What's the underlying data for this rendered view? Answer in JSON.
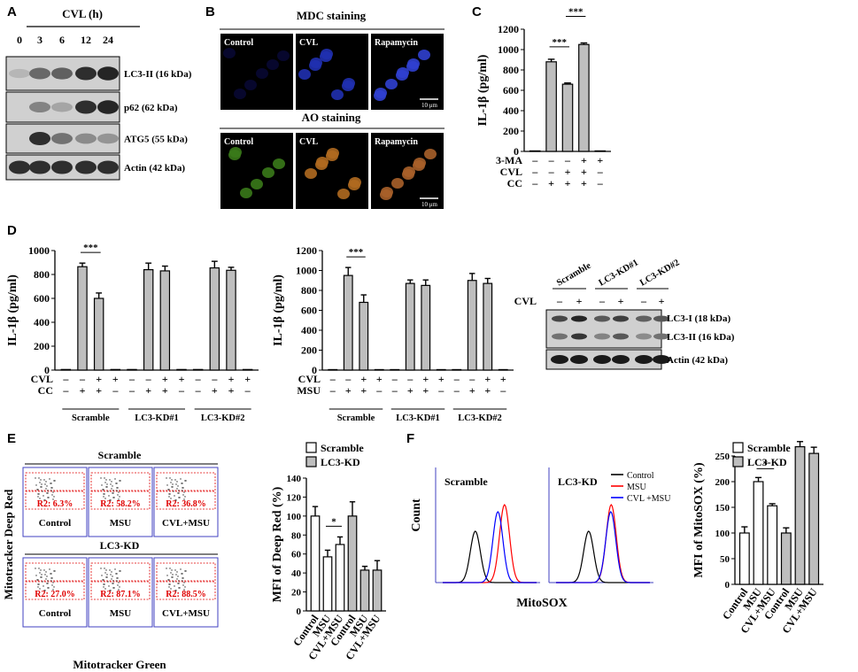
{
  "panels": {
    "A": {
      "label": "A",
      "header": "CVL (h)",
      "times": [
        "0",
        "3",
        "6",
        "12",
        "24"
      ],
      "blots": [
        "LC3-II (16 kDa)",
        "p62 (62 kDa)",
        "ATG5 (55 kDa)",
        "Actin (42 kDa)"
      ]
    },
    "B": {
      "label": "B",
      "mdc_title": "MDC staining",
      "ao_title": "AO staining",
      "conditions": [
        "Control",
        "CVL",
        "Rapamycin"
      ],
      "scale": "10 μm"
    },
    "C": {
      "label": "C"
    },
    "D": {
      "label": "D",
      "blot_groups": [
        "Scramble",
        "LC3-KD#1",
        "LC3-KD#2"
      ],
      "blot_cvl_label": "CVL",
      "blot_cvl_signs": [
        "–",
        "+",
        "–",
        "+",
        "–",
        "+"
      ],
      "blot_bands": [
        "LC3-I (18 kDa)",
        "LC3-II (16 kDa)",
        "Actin (42 kDa)"
      ]
    },
    "E": {
      "label": "E",
      "flow_y": "Mitotracker Deep Red",
      "flow_x": "Mitotracker Green",
      "rows": [
        {
          "name": "Scramble",
          "cells": [
            {
              "cond": "Control",
              "r2": "R2: 6.3%"
            },
            {
              "cond": "MSU",
              "r2": "R2: 58.2%"
            },
            {
              "cond": "CVL+MSU",
              "r2": "R2: 36.8%"
            }
          ]
        },
        {
          "name": "LC3-KD",
          "cells": [
            {
              "cond": "Control",
              "r2": "R2: 27.0%"
            },
            {
              "cond": "MSU",
              "r2": "R2: 87.1%"
            },
            {
              "cond": "CVL+MSU",
              "r2": "R2: 88.5%"
            }
          ]
        }
      ]
    },
    "F": {
      "label": "F",
      "hist_ylabel": "Count",
      "hist_xlabel": "MitoSOX",
      "hist_titles": [
        "Scramble",
        "LC3-KD"
      ],
      "hist_legend": [
        "Control",
        "MSU",
        "CVL +MSU"
      ]
    }
  },
  "colors": {
    "control": "#000000",
    "msu": "#ff0000",
    "cvl_msu": "#0000ff",
    "bar_gray": "#bebebe",
    "bar_white": "#ffffff",
    "gate_red": "#e00000",
    "flow_blue": "#4040c0"
  },
  "chart_data": [
    {
      "id": "C",
      "type": "bar",
      "ylabel": "IL-1β (pg/ml)",
      "ylim": [
        0,
        1200
      ],
      "yticks": [
        0,
        200,
        400,
        600,
        800,
        1000,
        1200
      ],
      "values": [
        5,
        880,
        660,
        1050,
        5
      ],
      "errors": [
        0,
        25,
        12,
        15,
        0
      ],
      "rows": [
        {
          "label": "3-MA",
          "signs": [
            "–",
            "–",
            "–",
            "+",
            "+"
          ]
        },
        {
          "label": "CVL",
          "signs": [
            "–",
            "–",
            "+",
            "+",
            "–"
          ]
        },
        {
          "label": "CC",
          "signs": [
            "–",
            "+",
            "+",
            "+",
            "–"
          ]
        }
      ],
      "sig": [
        {
          "from": 1,
          "to": 2,
          "text": "***"
        },
        {
          "from": 2,
          "to": 3,
          "text": "***"
        }
      ]
    },
    {
      "id": "D1",
      "type": "bar",
      "ylabel": "IL-1β (pg/ml)",
      "ylim": [
        0,
        1000
      ],
      "yticks": [
        0,
        200,
        400,
        600,
        800,
        1000
      ],
      "values": [
        5,
        865,
        600,
        5,
        5,
        840,
        830,
        5,
        5,
        855,
        835,
        5
      ],
      "errors": [
        0,
        30,
        45,
        0,
        0,
        55,
        40,
        0,
        0,
        55,
        25,
        0
      ],
      "rows": [
        {
          "label": "CVL",
          "signs": [
            "–",
            "–",
            "+",
            "+",
            "–",
            "–",
            "+",
            "+",
            "–",
            "–",
            "+",
            "+"
          ]
        },
        {
          "label": "CC",
          "signs": [
            "–",
            "+",
            "+",
            "–",
            "–",
            "+",
            "+",
            "–",
            "–",
            "+",
            "+",
            "–"
          ]
        }
      ],
      "groups": [
        "Scramble",
        "LC3-KD#1",
        "LC3-KD#2"
      ],
      "sig": [
        {
          "from": 1,
          "to": 2,
          "text": "***"
        }
      ]
    },
    {
      "id": "D2",
      "type": "bar",
      "ylabel": "IL-1β (pg/ml)",
      "ylim": [
        0,
        1200
      ],
      "yticks": [
        0,
        200,
        400,
        600,
        800,
        1000,
        1200
      ],
      "values": [
        5,
        950,
        680,
        5,
        5,
        870,
        850,
        5,
        5,
        900,
        870,
        5
      ],
      "errors": [
        0,
        80,
        75,
        0,
        0,
        35,
        55,
        0,
        0,
        70,
        50,
        0
      ],
      "rows": [
        {
          "label": "CVL",
          "signs": [
            "–",
            "–",
            "+",
            "+",
            "–",
            "–",
            "+",
            "+",
            "–",
            "–",
            "+",
            "+"
          ]
        },
        {
          "label": "MSU",
          "signs": [
            "–",
            "+",
            "+",
            "–",
            "–",
            "+",
            "+",
            "–",
            "–",
            "+",
            "+",
            "–"
          ]
        }
      ],
      "groups": [
        "Scramble",
        "LC3-KD#1",
        "LC3-KD#2"
      ],
      "sig": [
        {
          "from": 1,
          "to": 2,
          "text": "***"
        }
      ]
    },
    {
      "id": "E",
      "type": "bar",
      "ylabel": "MFI of Deep Red (%)",
      "ylim": [
        0,
        140
      ],
      "yticks": [
        0,
        20,
        40,
        60,
        80,
        100,
        120,
        140
      ],
      "categories": [
        "Control",
        "MSU",
        "CVL+MSU",
        "Control",
        "MSU",
        "CVL+MSU"
      ],
      "values": [
        100,
        57,
        70,
        100,
        43,
        43
      ],
      "errors": [
        10,
        7,
        8,
        15,
        4,
        10
      ],
      "fills": [
        "white",
        "white",
        "white",
        "gray",
        "gray",
        "gray"
      ],
      "legend": [
        "Scramble",
        "LC3-KD"
      ],
      "sig": [
        {
          "from": 1,
          "to": 2,
          "text": "*"
        }
      ]
    },
    {
      "id": "F",
      "type": "bar",
      "ylabel": "MFI of MitoSOX (%)",
      "ylim": [
        0,
        250
      ],
      "yticks": [
        0,
        50,
        100,
        150,
        200,
        250
      ],
      "categories": [
        "Control",
        "MSU",
        "CVL+MSU",
        "Control",
        "MSU",
        "CVL+MSU"
      ],
      "values": [
        100,
        200,
        153,
        100,
        268,
        255
      ],
      "errors": [
        12,
        8,
        4,
        10,
        10,
        12
      ],
      "fills": [
        "white",
        "white",
        "white",
        "gray",
        "gray",
        "gray"
      ],
      "legend": [
        "Scramble",
        "LC3-KD"
      ],
      "sig": [
        {
          "from": 1,
          "to": 2,
          "text": "*"
        }
      ]
    }
  ]
}
